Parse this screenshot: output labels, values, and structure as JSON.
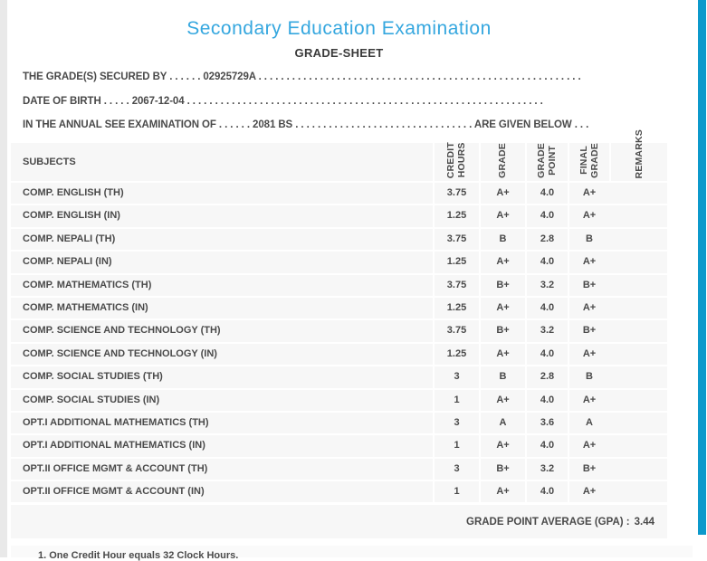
{
  "page": {
    "title": "Secondary Education Examination",
    "subtitle": "GRADE-SHEET",
    "info_lines": [
      "THE GRADE(S) SECURED BY . . . . . . 02925729A . . . . . . . . . . . . . . . . . . . . . . . . . . . . . . . . . . . . . . . . . . . . . . . . . . . . . . . . . .",
      "DATE OF BIRTH . . . . . 2067-12-04 . . . . . . . . . . . . . . . . . . . . . . . . . . . . . . . . . . . . . . . . . . . . . . . . . . . . . . . . . . . . . . . .",
      "IN THE ANNUAL SEE EXAMINATION OF . . . . . . 2081 BS . . . . . . . . . . . . . . . . . . . . . . . . . . . . . . . . ARE GIVEN BELOW . . ."
    ],
    "gpa_label": "GRADE POINT AVERAGE (GPA) :",
    "gpa_value": "3.44",
    "footnote": "1. One Credit Hour equals 32 Clock Hours.",
    "colors": {
      "title_blue": "#35a7df",
      "accent_stripe_blue": "#0c99cb",
      "table_row_bg": "#f7f7f7",
      "text_dark": "#4a4a4a",
      "left_strip_gray": "#e9e9e9"
    }
  },
  "table": {
    "headers": {
      "subjects": "SUBJECTS",
      "credit_hours": "CREDIT\nHOURS",
      "grade": "GRADE",
      "grade_point": "GRADE\nPOINT",
      "final_grade": "FINAL\nGRADE",
      "remarks": "REMARKS"
    },
    "rows": [
      {
        "subject": "COMP. ENGLISH (TH)",
        "credit_hours": "3.75",
        "grade": "A+",
        "grade_point": "4.0",
        "final_grade": "A+",
        "remarks": ""
      },
      {
        "subject": "COMP. ENGLISH (IN)",
        "credit_hours": "1.25",
        "grade": "A+",
        "grade_point": "4.0",
        "final_grade": "A+",
        "remarks": ""
      },
      {
        "subject": "COMP. NEPALI (TH)",
        "credit_hours": "3.75",
        "grade": "B",
        "grade_point": "2.8",
        "final_grade": "B",
        "remarks": ""
      },
      {
        "subject": "COMP. NEPALI (IN)",
        "credit_hours": "1.25",
        "grade": "A+",
        "grade_point": "4.0",
        "final_grade": "A+",
        "remarks": ""
      },
      {
        "subject": "COMP. MATHEMATICS (TH)",
        "credit_hours": "3.75",
        "grade": "B+",
        "grade_point": "3.2",
        "final_grade": "B+",
        "remarks": ""
      },
      {
        "subject": "COMP. MATHEMATICS (IN)",
        "credit_hours": "1.25",
        "grade": "A+",
        "grade_point": "4.0",
        "final_grade": "A+",
        "remarks": ""
      },
      {
        "subject": "COMP. SCIENCE AND TECHNOLOGY (TH)",
        "credit_hours": "3.75",
        "grade": "B+",
        "grade_point": "3.2",
        "final_grade": "B+",
        "remarks": ""
      },
      {
        "subject": "COMP. SCIENCE AND TECHNOLOGY (IN)",
        "credit_hours": "1.25",
        "grade": "A+",
        "grade_point": "4.0",
        "final_grade": "A+",
        "remarks": ""
      },
      {
        "subject": "COMP. SOCIAL STUDIES (TH)",
        "credit_hours": "3",
        "grade": "B",
        "grade_point": "2.8",
        "final_grade": "B",
        "remarks": ""
      },
      {
        "subject": "COMP. SOCIAL STUDIES (IN)",
        "credit_hours": "1",
        "grade": "A+",
        "grade_point": "4.0",
        "final_grade": "A+",
        "remarks": ""
      },
      {
        "subject": "OPT.I ADDITIONAL MATHEMATICS (TH)",
        "credit_hours": "3",
        "grade": "A",
        "grade_point": "3.6",
        "final_grade": "A",
        "remarks": ""
      },
      {
        "subject": "OPT.I ADDITIONAL MATHEMATICS (IN)",
        "credit_hours": "1",
        "grade": "A+",
        "grade_point": "4.0",
        "final_grade": "A+",
        "remarks": ""
      },
      {
        "subject": "OPT.II OFFICE MGMT & ACCOUNT (TH)",
        "credit_hours": "3",
        "grade": "B+",
        "grade_point": "3.2",
        "final_grade": "B+",
        "remarks": ""
      },
      {
        "subject": "OPT.II OFFICE MGMT & ACCOUNT (IN)",
        "credit_hours": "1",
        "grade": "A+",
        "grade_point": "4.0",
        "final_grade": "A+",
        "remarks": ""
      }
    ]
  }
}
